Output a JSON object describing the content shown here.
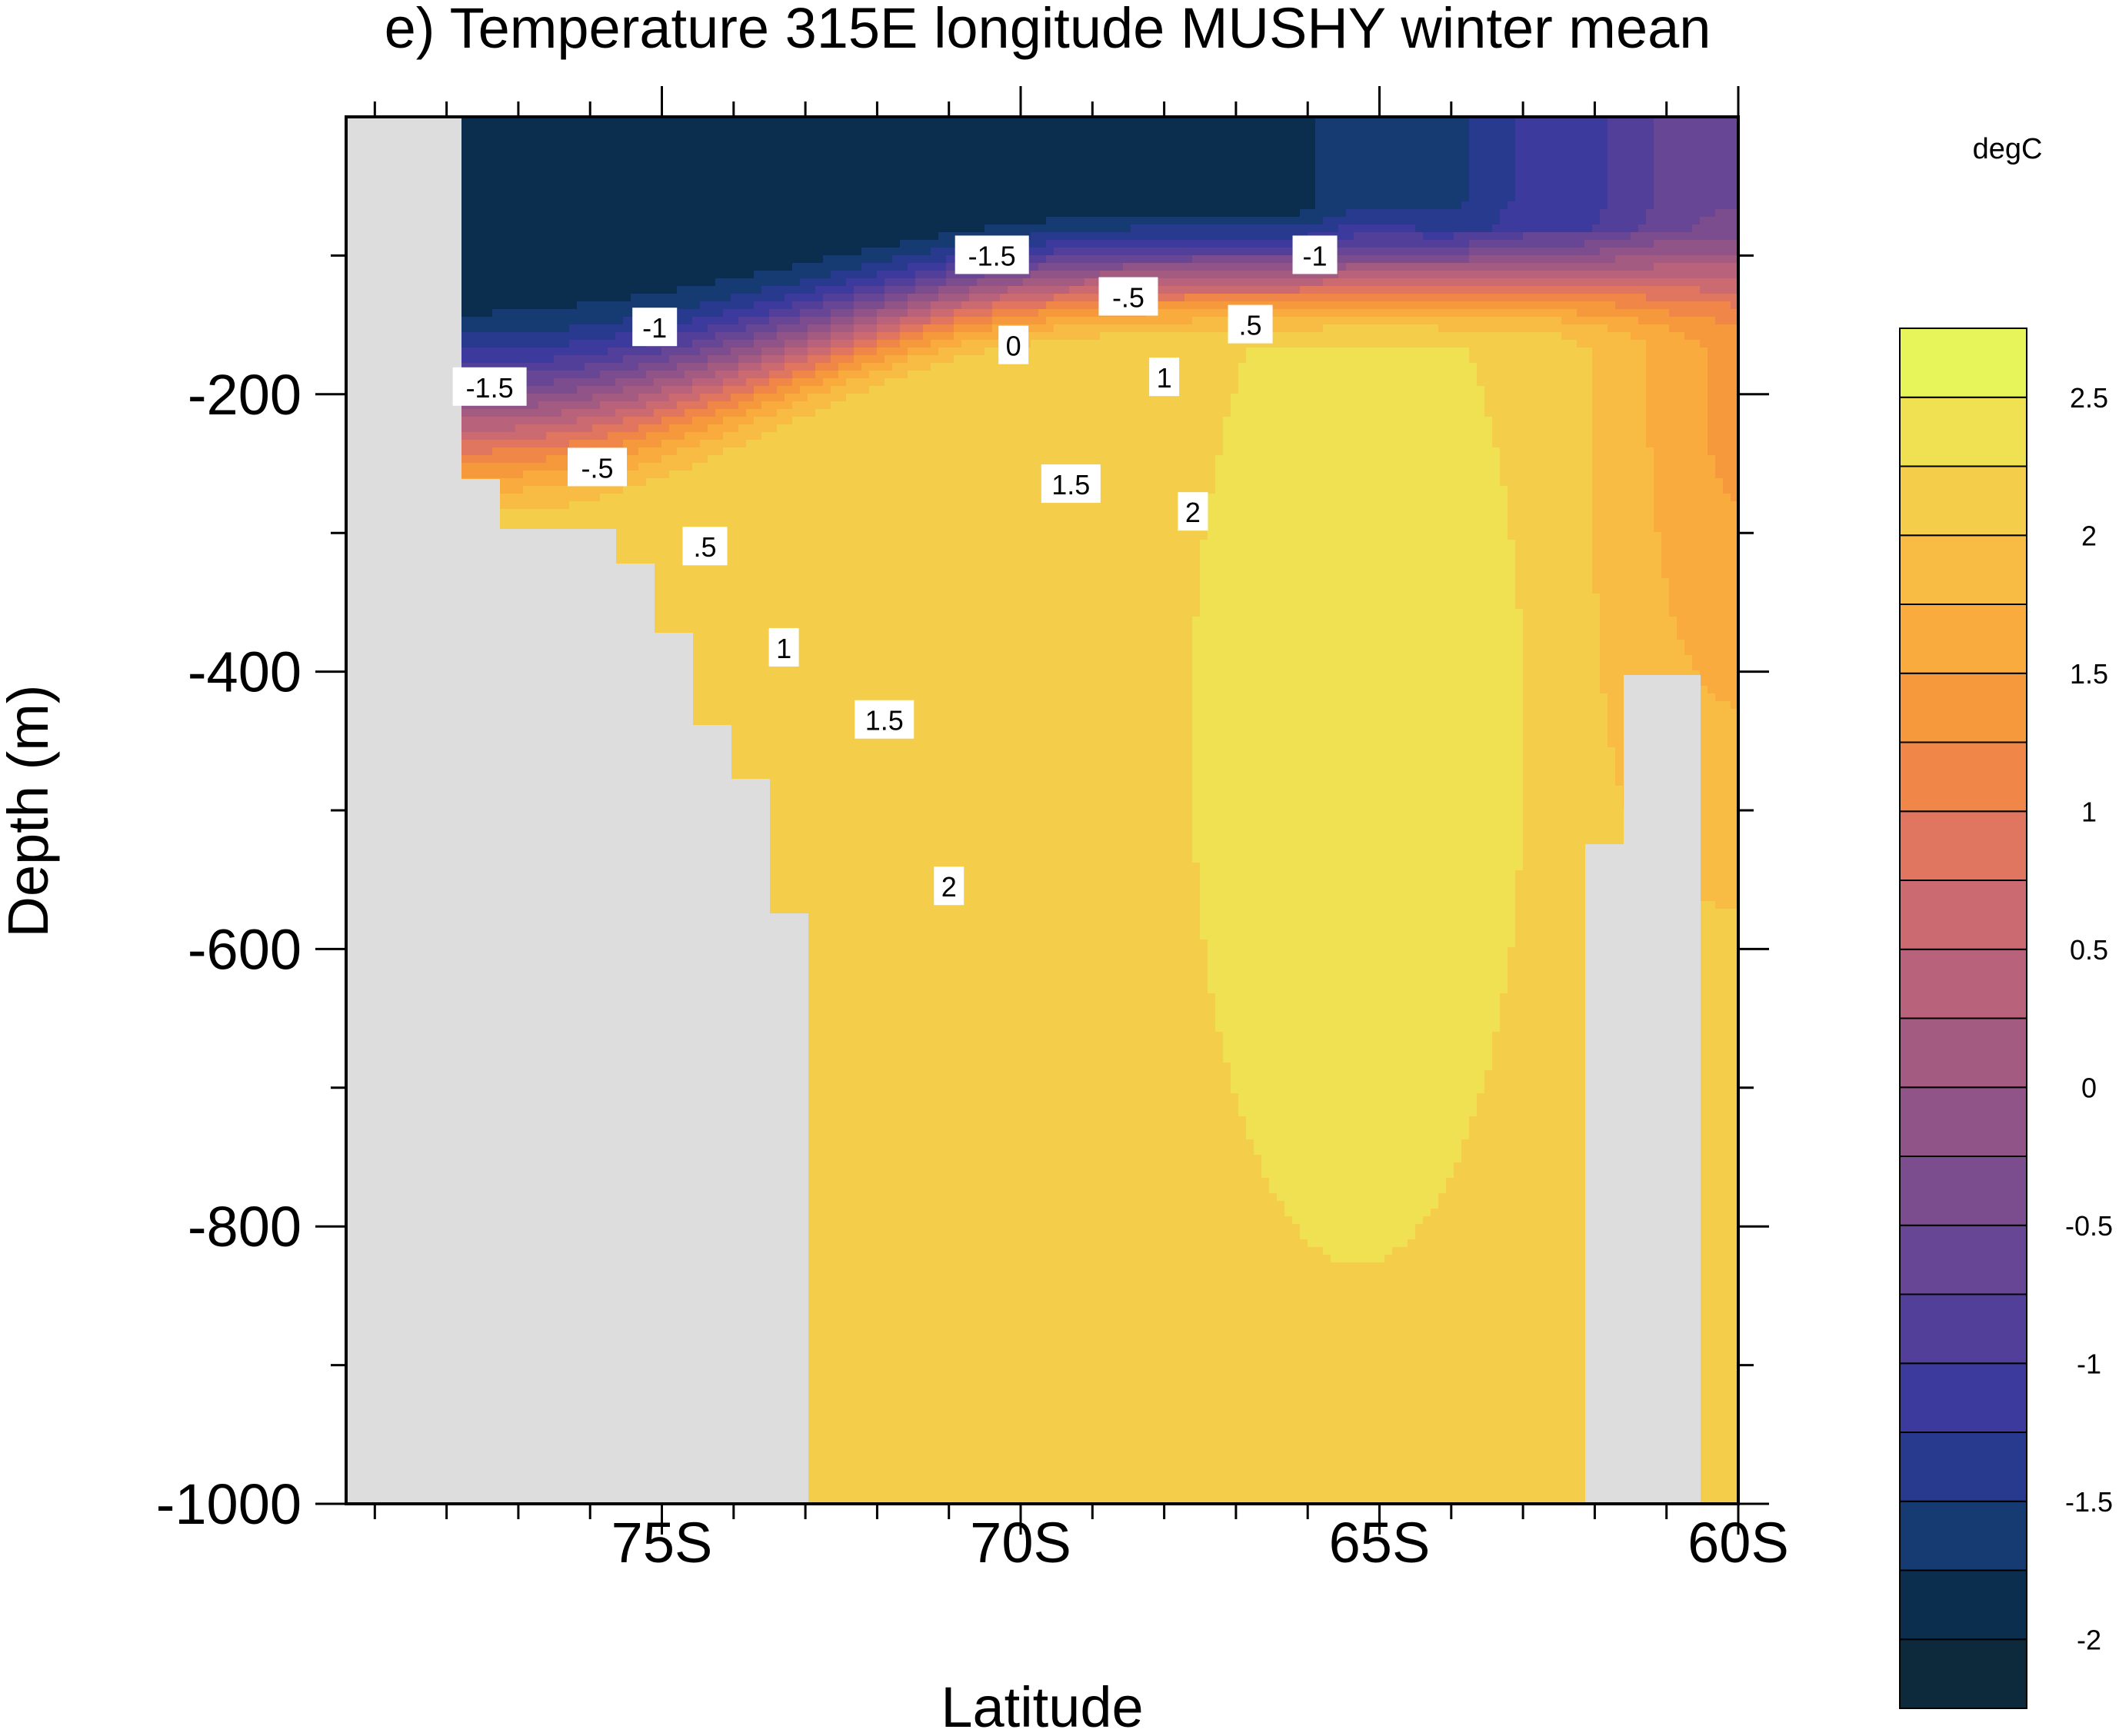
{
  "chart_data": {
    "type": "heatmap",
    "title": "e) Temperature 315E longitude MUSHY winter mean",
    "xlabel": "Latitude",
    "ylabel": "Depth (m)",
    "x_ticks": [
      {
        "value": -75,
        "label": "75S"
      },
      {
        "value": -70,
        "label": "70S"
      },
      {
        "value": -65,
        "label": "65S"
      },
      {
        "value": -60,
        "label": "60S"
      }
    ],
    "y_ticks": [
      {
        "value": -200,
        "label": "-200"
      },
      {
        "value": -400,
        "label": "-400"
      },
      {
        "value": -600,
        "label": "-600"
      },
      {
        "value": -800,
        "label": "-800"
      },
      {
        "value": -1000,
        "label": "-1000"
      }
    ],
    "xlim": [
      -79.4,
      -60
    ],
    "ylim": [
      -1000,
      0
    ],
    "grid": false,
    "colorbar": {
      "unit": "degC",
      "levels": [
        -2.25,
        -2,
        -1.75,
        -1.5,
        -1.25,
        -1,
        -0.75,
        -0.5,
        -0.25,
        0,
        0.25,
        0.5,
        0.75,
        1,
        1.25,
        1.5,
        1.75,
        2,
        2.25,
        2.5,
        2.75
      ],
      "labels": [
        {
          "value": -2,
          "label": "-2"
        },
        {
          "value": -1.5,
          "label": "-1.5"
        },
        {
          "value": -1,
          "label": "-1"
        },
        {
          "value": -0.5,
          "label": "-0.5"
        },
        {
          "value": 0,
          "label": "0"
        },
        {
          "value": 0.5,
          "label": "0.5"
        },
        {
          "value": 1,
          "label": "1"
        },
        {
          "value": 1.5,
          "label": "1.5"
        },
        {
          "value": 2,
          "label": "2"
        },
        {
          "value": 2.5,
          "label": "2.5"
        }
      ],
      "colors": [
        "#0d2a3c",
        "#0b2d4e",
        "#163a72",
        "#283a8e",
        "#3c3a9c",
        "#523f9a",
        "#674695",
        "#7c4d8e",
        "#905489",
        "#a45b82",
        "#b8627b",
        "#cc6a71",
        "#e07560",
        "#f08748",
        "#f6993c",
        "#f9ab3e",
        "#f8bc44",
        "#f4ce4a",
        "#f0e152",
        "#e7f45a"
      ]
    },
    "contour_labels": [
      {
        "label": "-1.5",
        "lat": -70.4,
        "depth": -100
      },
      {
        "label": "-1",
        "lat": -65.9,
        "depth": -100
      },
      {
        "label": "-.5",
        "lat": -68.5,
        "depth": -130
      },
      {
        "label": ".5",
        "lat": -66.8,
        "depth": -150
      },
      {
        "label": "0",
        "lat": -70.1,
        "depth": -165
      },
      {
        "label": "1",
        "lat": -68.0,
        "depth": -188
      },
      {
        "label": "-1",
        "lat": -75.1,
        "depth": -152
      },
      {
        "label": "-1.5",
        "lat": -77.4,
        "depth": -195
      },
      {
        "label": "-.5",
        "lat": -75.9,
        "depth": -253
      },
      {
        "label": ".5",
        "lat": -74.4,
        "depth": -310
      },
      {
        "label": "1",
        "lat": -73.3,
        "depth": -383
      },
      {
        "label": "1.5",
        "lat": -69.3,
        "depth": -265
      },
      {
        "label": "2",
        "lat": -67.6,
        "depth": -285
      },
      {
        "label": "1.5",
        "lat": -71.9,
        "depth": -435
      },
      {
        "label": "2",
        "lat": -71.0,
        "depth": -555
      }
    ]
  }
}
